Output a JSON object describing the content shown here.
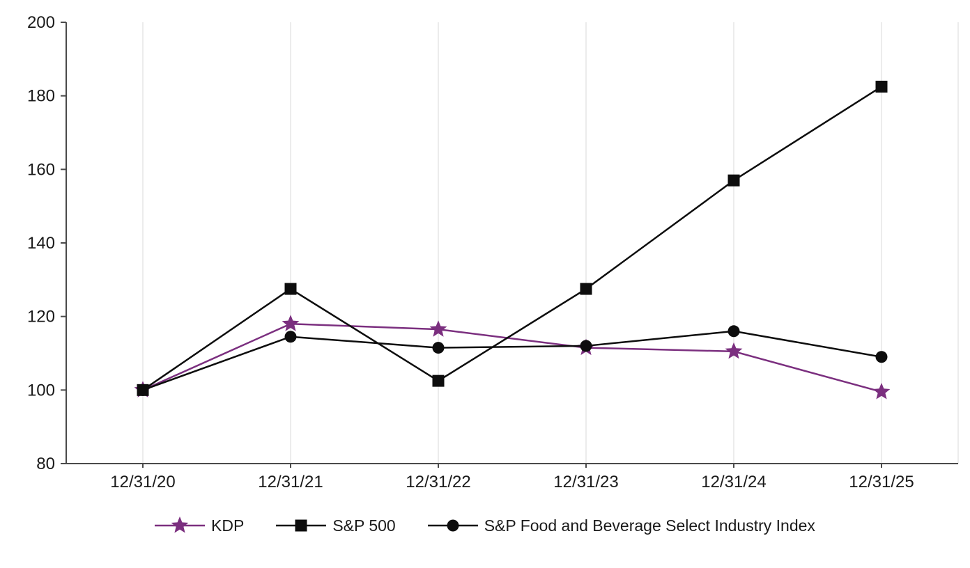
{
  "chart_data": {
    "type": "line",
    "title": "",
    "xlabel": "",
    "ylabel": "",
    "x_categories": [
      "12/31/20",
      "12/31/21",
      "12/31/22",
      "12/31/23",
      "12/31/24",
      "12/31/25"
    ],
    "ylim": [
      80,
      200
    ],
    "yticks": [
      80,
      100,
      120,
      140,
      160,
      180,
      200
    ],
    "grid": "vertical-light",
    "legend_position": "bottom",
    "colors": {
      "axis": "#4a4a4a",
      "grid": "#d9d9d9",
      "text": "#1a1a1a",
      "kdp_purple": "#7B2F7F",
      "black": "#0d0d0d"
    },
    "series": [
      {
        "name": "KDP",
        "marker": "star",
        "color": "#7B2F7F",
        "values": [
          100,
          118,
          116.5,
          111.5,
          110.5,
          99.5
        ]
      },
      {
        "name": "S&P 500",
        "marker": "square",
        "color": "#0d0d0d",
        "values": [
          100,
          127.5,
          102.5,
          127.5,
          157,
          182.5
        ]
      },
      {
        "name": "S&P Food and Beverage Select Industry Index",
        "marker": "circle",
        "color": "#0d0d0d",
        "values": [
          100,
          114.5,
          111.5,
          112,
          116,
          109
        ]
      }
    ]
  }
}
